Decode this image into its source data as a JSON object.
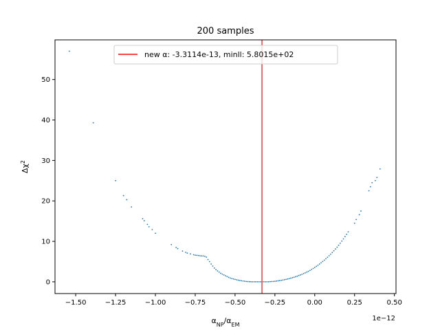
{
  "chart_data": {
    "type": "scatter",
    "title": "200 samples",
    "xlabel": "α_NP/α_EM",
    "ylabel": "Δχ²",
    "x_offset_label": "1e−12",
    "x_scale_exponent": -12,
    "xlim": [
      -1.63,
      0.51
    ],
    "ylim": [
      -2.9,
      59.8
    ],
    "x_ticks": [
      -1.5,
      -1.25,
      -1.0,
      -0.75,
      -0.5,
      -0.25,
      0.0,
      0.25,
      0.5
    ],
    "x_tick_labels": [
      "−1.50",
      "−1.25",
      "−1.00",
      "−0.75",
      "−0.50",
      "−0.25",
      "0.00",
      "0.25",
      "0.50"
    ],
    "y_ticks": [
      0,
      10,
      20,
      30,
      40,
      50
    ],
    "y_tick_labels": [
      "0",
      "10",
      "20",
      "30",
      "40",
      "50"
    ],
    "grid": false,
    "legend": {
      "placement": "top-center",
      "entries": [
        {
          "label": "new α: -3.3114e-13, minll: 5.8015e+02",
          "color": "#ff0000",
          "marker": "line"
        }
      ]
    },
    "vline": {
      "x": -0.3311,
      "color": "#ff0000"
    },
    "point_color": "#1f77b4",
    "series": [
      {
        "x": [
          -1.54,
          -1.39,
          -1.25,
          -1.2,
          -1.18,
          -1.15,
          -1.08,
          -1.07,
          -1.05,
          -1.04,
          -1.02,
          -1.0,
          -0.9,
          -0.87,
          -0.86,
          -0.83,
          -0.81,
          -0.8,
          -0.78,
          -0.76,
          -0.75,
          -0.74,
          -0.73,
          -0.72,
          -0.71,
          -0.7,
          -0.69,
          -0.68,
          -0.67,
          -0.66,
          -0.65,
          -0.64,
          -0.63,
          -0.62,
          -0.61,
          -0.6,
          -0.59,
          -0.58,
          -0.57,
          -0.56,
          -0.55,
          -0.54,
          -0.53,
          -0.52,
          -0.51,
          -0.5,
          -0.49,
          -0.48,
          -0.47,
          -0.46,
          -0.45,
          -0.44,
          -0.43,
          -0.42,
          -0.41,
          -0.4,
          -0.39,
          -0.38,
          -0.37,
          -0.36,
          -0.35,
          -0.34,
          -0.33,
          -0.32,
          -0.31,
          -0.3,
          -0.29,
          -0.28,
          -0.27,
          -0.26,
          -0.25,
          -0.24,
          -0.23,
          -0.22,
          -0.21,
          -0.2,
          -0.19,
          -0.18,
          -0.17,
          -0.16,
          -0.15,
          -0.14,
          -0.13,
          -0.12,
          -0.11,
          -0.1,
          -0.09,
          -0.08,
          -0.07,
          -0.06,
          -0.05,
          -0.04,
          -0.03,
          -0.02,
          -0.01,
          0.0,
          0.01,
          0.02,
          0.03,
          0.04,
          0.05,
          0.06,
          0.07,
          0.08,
          0.09,
          0.1,
          0.11,
          0.12,
          0.13,
          0.14,
          0.15,
          0.16,
          0.17,
          0.18,
          0.19,
          0.2,
          0.21,
          0.25,
          0.26,
          0.28,
          0.29,
          0.34,
          0.35,
          0.36,
          0.38,
          0.39,
          0.41
        ],
        "y": [
          57.0,
          39.3,
          25.0,
          21.3,
          20.3,
          18.5,
          15.6,
          15.1,
          14.2,
          13.6,
          12.9,
          12.0,
          9.2,
          8.5,
          8.2,
          7.6,
          7.3,
          7.1,
          6.9,
          6.7,
          6.6,
          6.55,
          6.5,
          6.45,
          6.4,
          6.4,
          6.3,
          6.1,
          5.5,
          5.0,
          4.4,
          3.9,
          3.4,
          3.0,
          2.7,
          2.4,
          2.1,
          1.9,
          1.7,
          1.5,
          1.3,
          1.1,
          0.95,
          0.8,
          0.7,
          0.6,
          0.5,
          0.4,
          0.33,
          0.26,
          0.2,
          0.15,
          0.1,
          0.07,
          0.04,
          0.02,
          0.01,
          0.0,
          0.0,
          0.0,
          0.0,
          0.0,
          0.0,
          0.0,
          0.0,
          0.01,
          0.02,
          0.04,
          0.07,
          0.1,
          0.14,
          0.19,
          0.25,
          0.3,
          0.37,
          0.44,
          0.52,
          0.61,
          0.7,
          0.8,
          0.91,
          1.02,
          1.14,
          1.27,
          1.4,
          1.55,
          1.7,
          1.86,
          2.03,
          2.21,
          2.4,
          2.6,
          2.82,
          3.05,
          3.3,
          3.55,
          3.82,
          4.1,
          4.4,
          4.7,
          5.02,
          5.35,
          5.7,
          6.06,
          6.44,
          6.83,
          7.24,
          7.67,
          8.11,
          8.57,
          9.05,
          9.55,
          10.07,
          10.61,
          11.17,
          11.75,
          12.35,
          14.5,
          15.4,
          16.6,
          17.5,
          22.5,
          23.5,
          24.5,
          25.0,
          25.8,
          27.9
        ]
      }
    ]
  }
}
